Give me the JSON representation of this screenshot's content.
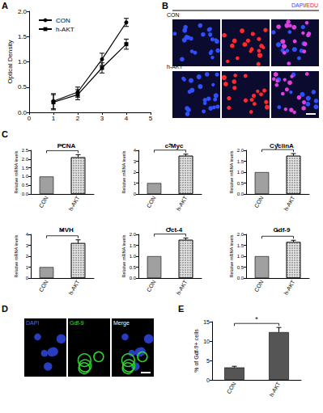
{
  "panel_labels": [
    "A",
    "B",
    "C",
    "D",
    "E"
  ],
  "images": {
    "B": {
      "header_parts": [
        "DAPI",
        "/",
        "EDU"
      ],
      "rows": [
        "CON",
        "h-AKT"
      ]
    },
    "D": {
      "columns": [
        "DAPI",
        "Gdf-9",
        "Merge"
      ]
    }
  },
  "chart_data": [
    {
      "type": "line",
      "y_label": "Optical Density",
      "x": [
        1,
        2,
        3,
        4
      ],
      "series": [
        {
          "name": "CON",
          "color": "#000000",
          "marker": "circle",
          "line_style": "solid",
          "values": [
            0.22,
            0.4,
            1.05,
            1.78
          ],
          "errors": [
            0.15,
            0.1,
            0.12,
            0.08
          ]
        },
        {
          "name": "h-AKT",
          "color": "#000000",
          "marker": "square",
          "line_style": "solid",
          "values": [
            0.2,
            0.35,
            0.88,
            1.35
          ],
          "errors": [
            0.15,
            0.1,
            0.1,
            0.1
          ]
        }
      ],
      "xlim": [
        0,
        5
      ],
      "xticks": [
        0,
        1,
        2,
        3,
        4,
        5
      ],
      "ylim": [
        0,
        2
      ],
      "yticks": [
        {
          "value": 0,
          "label": "0.0"
        },
        {
          "value": 0.5,
          "label": "0.5"
        },
        {
          "value": 1,
          "label": "1.0"
        },
        {
          "value": 1.5,
          "label": "1.5"
        },
        {
          "value": 2,
          "label": "2.0"
        }
      ],
      "legend": "upper-left",
      "grid": false
    },
    {
      "type": "bar",
      "title": "PCNA",
      "y_label": "Relative mRNA levels",
      "categories": [
        "CON",
        "h-AKT"
      ],
      "values": [
        1,
        2.1
      ],
      "errors": [
        0,
        0.15
      ],
      "colors": [
        "#a0a0a0",
        "#e6e6e6"
      ],
      "ylim": [
        0,
        2.5
      ],
      "yticks": [
        {
          "value": 0,
          "label": "0.0"
        },
        {
          "value": 0.5,
          "label": "0.5"
        },
        {
          "value": 1,
          "label": "1.0"
        },
        {
          "value": 1.5,
          "label": "1.5"
        },
        {
          "value": 2,
          "label": "2.0"
        },
        {
          "value": 2.5,
          "label": "2.5"
        }
      ],
      "annotation": "*",
      "grid": false
    },
    {
      "type": "bar",
      "title": "c-Myc",
      "y_label": "Relative mRNA levels",
      "categories": [
        "CON",
        "h-AKT"
      ],
      "values": [
        1,
        3.5
      ],
      "errors": [
        0,
        0.15
      ],
      "colors": [
        "#a0a0a0",
        "#e6e6e6"
      ],
      "ylim": [
        0,
        4
      ],
      "yticks": [
        0,
        1,
        2,
        3,
        4
      ],
      "annotation": "*",
      "grid": false
    },
    {
      "type": "bar",
      "title": "CyclinA",
      "y_label": "Relative mRNA levels",
      "categories": [
        "CON",
        "h-AKT"
      ],
      "values": [
        1,
        1.75
      ],
      "errors": [
        0,
        0.1
      ],
      "colors": [
        "#a0a0a0",
        "#e6e6e6"
      ],
      "ylim": [
        0,
        2
      ],
      "yticks": [
        {
          "value": 0,
          "label": "0.0"
        },
        {
          "value": 0.5,
          "label": "0.5"
        },
        {
          "value": 1,
          "label": "1.0"
        },
        {
          "value": 1.5,
          "label": "1.5"
        },
        {
          "value": 2,
          "label": "2.0"
        }
      ],
      "annotation": "*",
      "grid": false
    },
    {
      "type": "bar",
      "title": "MVH",
      "y_label": "Relative mRNA levels",
      "categories": [
        "CON",
        "h-AKT"
      ],
      "values": [
        1,
        3.2
      ],
      "errors": [
        0,
        0.3
      ],
      "colors": [
        "#a0a0a0",
        "#e6e6e6"
      ],
      "ylim": [
        0,
        4
      ],
      "yticks": [
        0,
        1,
        2,
        3,
        4
      ],
      "annotation": "*",
      "grid": false
    },
    {
      "type": "bar",
      "title": "Oct-4",
      "y_label": "Relative mRNA levels",
      "categories": [
        "CON",
        "h-AKT"
      ],
      "values": [
        1,
        1.75
      ],
      "errors": [
        0,
        0.08
      ],
      "colors": [
        "#a0a0a0",
        "#e6e6e6"
      ],
      "ylim": [
        0,
        2
      ],
      "yticks": [
        {
          "value": 0,
          "label": "0.0"
        },
        {
          "value": 0.5,
          "label": "0.5"
        },
        {
          "value": 1,
          "label": "1.0"
        },
        {
          "value": 1.5,
          "label": "1.5"
        },
        {
          "value": 2,
          "label": "2.0"
        }
      ],
      "annotation": "*",
      "grid": false
    },
    {
      "type": "bar",
      "title": "Gdf-9",
      "y_label": "Relative mRNA levels",
      "categories": [
        "CON",
        "h-AKT"
      ],
      "values": [
        1,
        1.65
      ],
      "errors": [
        0,
        0.08
      ],
      "colors": [
        "#a0a0a0",
        "#e6e6e6"
      ],
      "ylim": [
        0,
        2
      ],
      "yticks": [
        {
          "value": 0,
          "label": "0.0"
        },
        {
          "value": 0.5,
          "label": "0.5"
        },
        {
          "value": 1,
          "label": "1.0"
        },
        {
          "value": 1.5,
          "label": "1.5"
        },
        {
          "value": 2,
          "label": "2.0"
        }
      ],
      "annotation": "*",
      "grid": false
    },
    {
      "type": "bar",
      "y_label": "% of Gdf-9+ cells",
      "categories": [
        "CON",
        "h-AKT"
      ],
      "values": [
        3.2,
        12.3
      ],
      "errors": [
        0.3,
        1.2
      ],
      "colors": [
        "#555555",
        "#555555"
      ],
      "ylim": [
        0,
        15
      ],
      "yticks": [
        0,
        5,
        10,
        15
      ],
      "annotation": "*",
      "grid": false
    }
  ]
}
